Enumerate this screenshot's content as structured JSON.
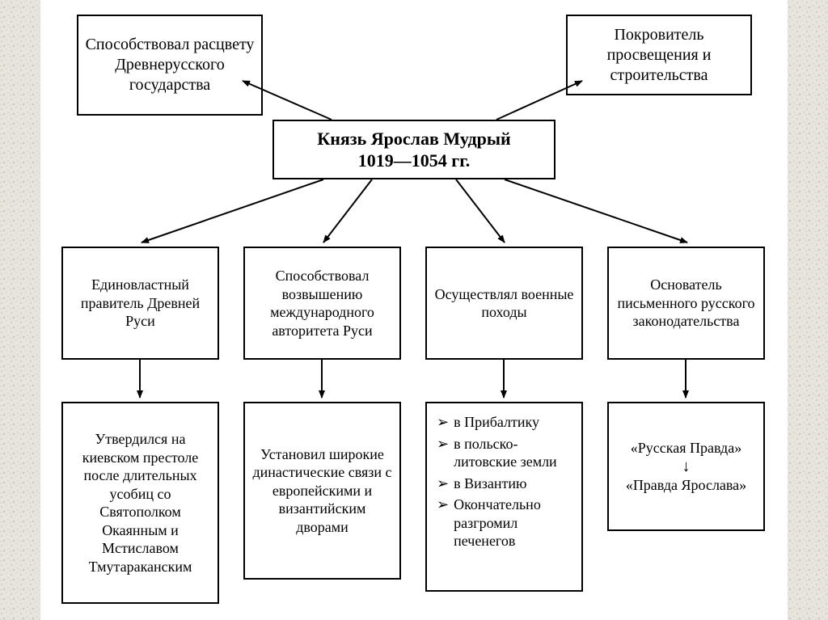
{
  "diagram": {
    "type": "flowchart",
    "background_color": "#ffffff",
    "border_color": "#000000",
    "text_color": "#000000",
    "font_family": "Times New Roman",
    "center": {
      "line1": "Князь Ярослав Мудрый",
      "line2": "1019—1054 гг.",
      "fontsize": 22,
      "font_weight": "bold"
    },
    "top_left": {
      "text": "Способствовал расцвету Древнерусского государства",
      "fontsize": 20
    },
    "top_right": {
      "text": "Покровитель просвещения и строительства",
      "fontsize": 20
    },
    "row2": {
      "fontsize": 18,
      "col1": "Единовластный правитель Древней Руси",
      "col2": "Способствовал возвышению международного авторитета Руси",
      "col3": "Осуществлял военные походы",
      "col4": "Основатель письменного русского законодательства"
    },
    "row3": {
      "fontsize": 18,
      "col1": "Утвердился на киевском престоле после длительных усобиц со Святополком Окаянным и Мстиславом Тмутараканским",
      "col2": "Установил широкие династические связи с европейскими и византийским дворами",
      "col3": {
        "items": [
          "в Прибалтику",
          "в польско-литовские земли",
          "в Византию",
          "Окончательно разгромил печенегов"
        ],
        "bullet": "➢"
      },
      "col4": {
        "top": "«Русская Правда»",
        "arrow": "↓",
        "bottom": "«Правда Ярослава»"
      }
    }
  }
}
